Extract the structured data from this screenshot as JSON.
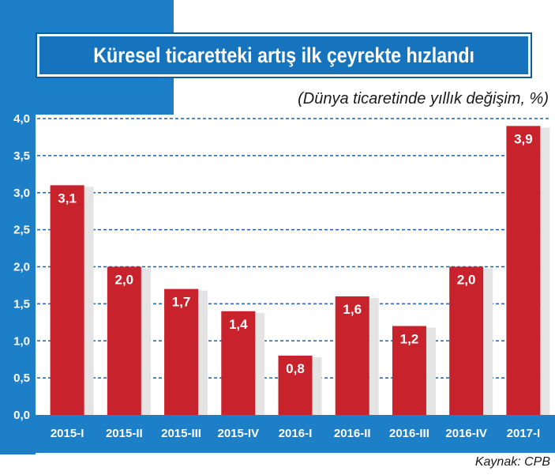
{
  "header": {
    "title": "Küresel ticaretteki artış ilk çeyrekte hızlandı",
    "subtitle": "(Dünya ticaretinde yıllık değişim, %)"
  },
  "footer": {
    "source": "Kaynak: CPB"
  },
  "colors": {
    "frame_blue": "#1E7FC9",
    "title_blue": "#1673BD",
    "bar_red": "#C8222C",
    "grid_blue": "#1E5FA8"
  },
  "chart_data": {
    "type": "bar",
    "title": "Küresel ticaretteki artış ilk çeyrekte hızlandı",
    "subtitle": "(Dünya ticaretinde yıllık değişim, %)",
    "categories": [
      "2015-I",
      "2015-II",
      "2015-III",
      "2015-IV",
      "2016-I",
      "2016-II",
      "2016-III",
      "2016-IV",
      "2017-I"
    ],
    "values": [
      3.1,
      2.0,
      1.7,
      1.4,
      0.8,
      1.6,
      1.2,
      2.0,
      3.9
    ],
    "value_labels": [
      "3,1",
      "2,0",
      "1,7",
      "1,4",
      "0,8",
      "1,6",
      "1,2",
      "2,0",
      "3,9"
    ],
    "yticks": [
      0,
      0.5,
      1.0,
      1.5,
      2.0,
      2.5,
      3.0,
      3.5,
      4.0
    ],
    "ytick_labels": [
      "0,0",
      "0,5",
      "1,0",
      "1,5",
      "2,0",
      "2,5",
      "3,0",
      "3,5",
      "4,0"
    ],
    "ylim": [
      0,
      4.0
    ],
    "xlabel": "",
    "ylabel": "",
    "grid": true,
    "source": "Kaynak: CPB"
  }
}
